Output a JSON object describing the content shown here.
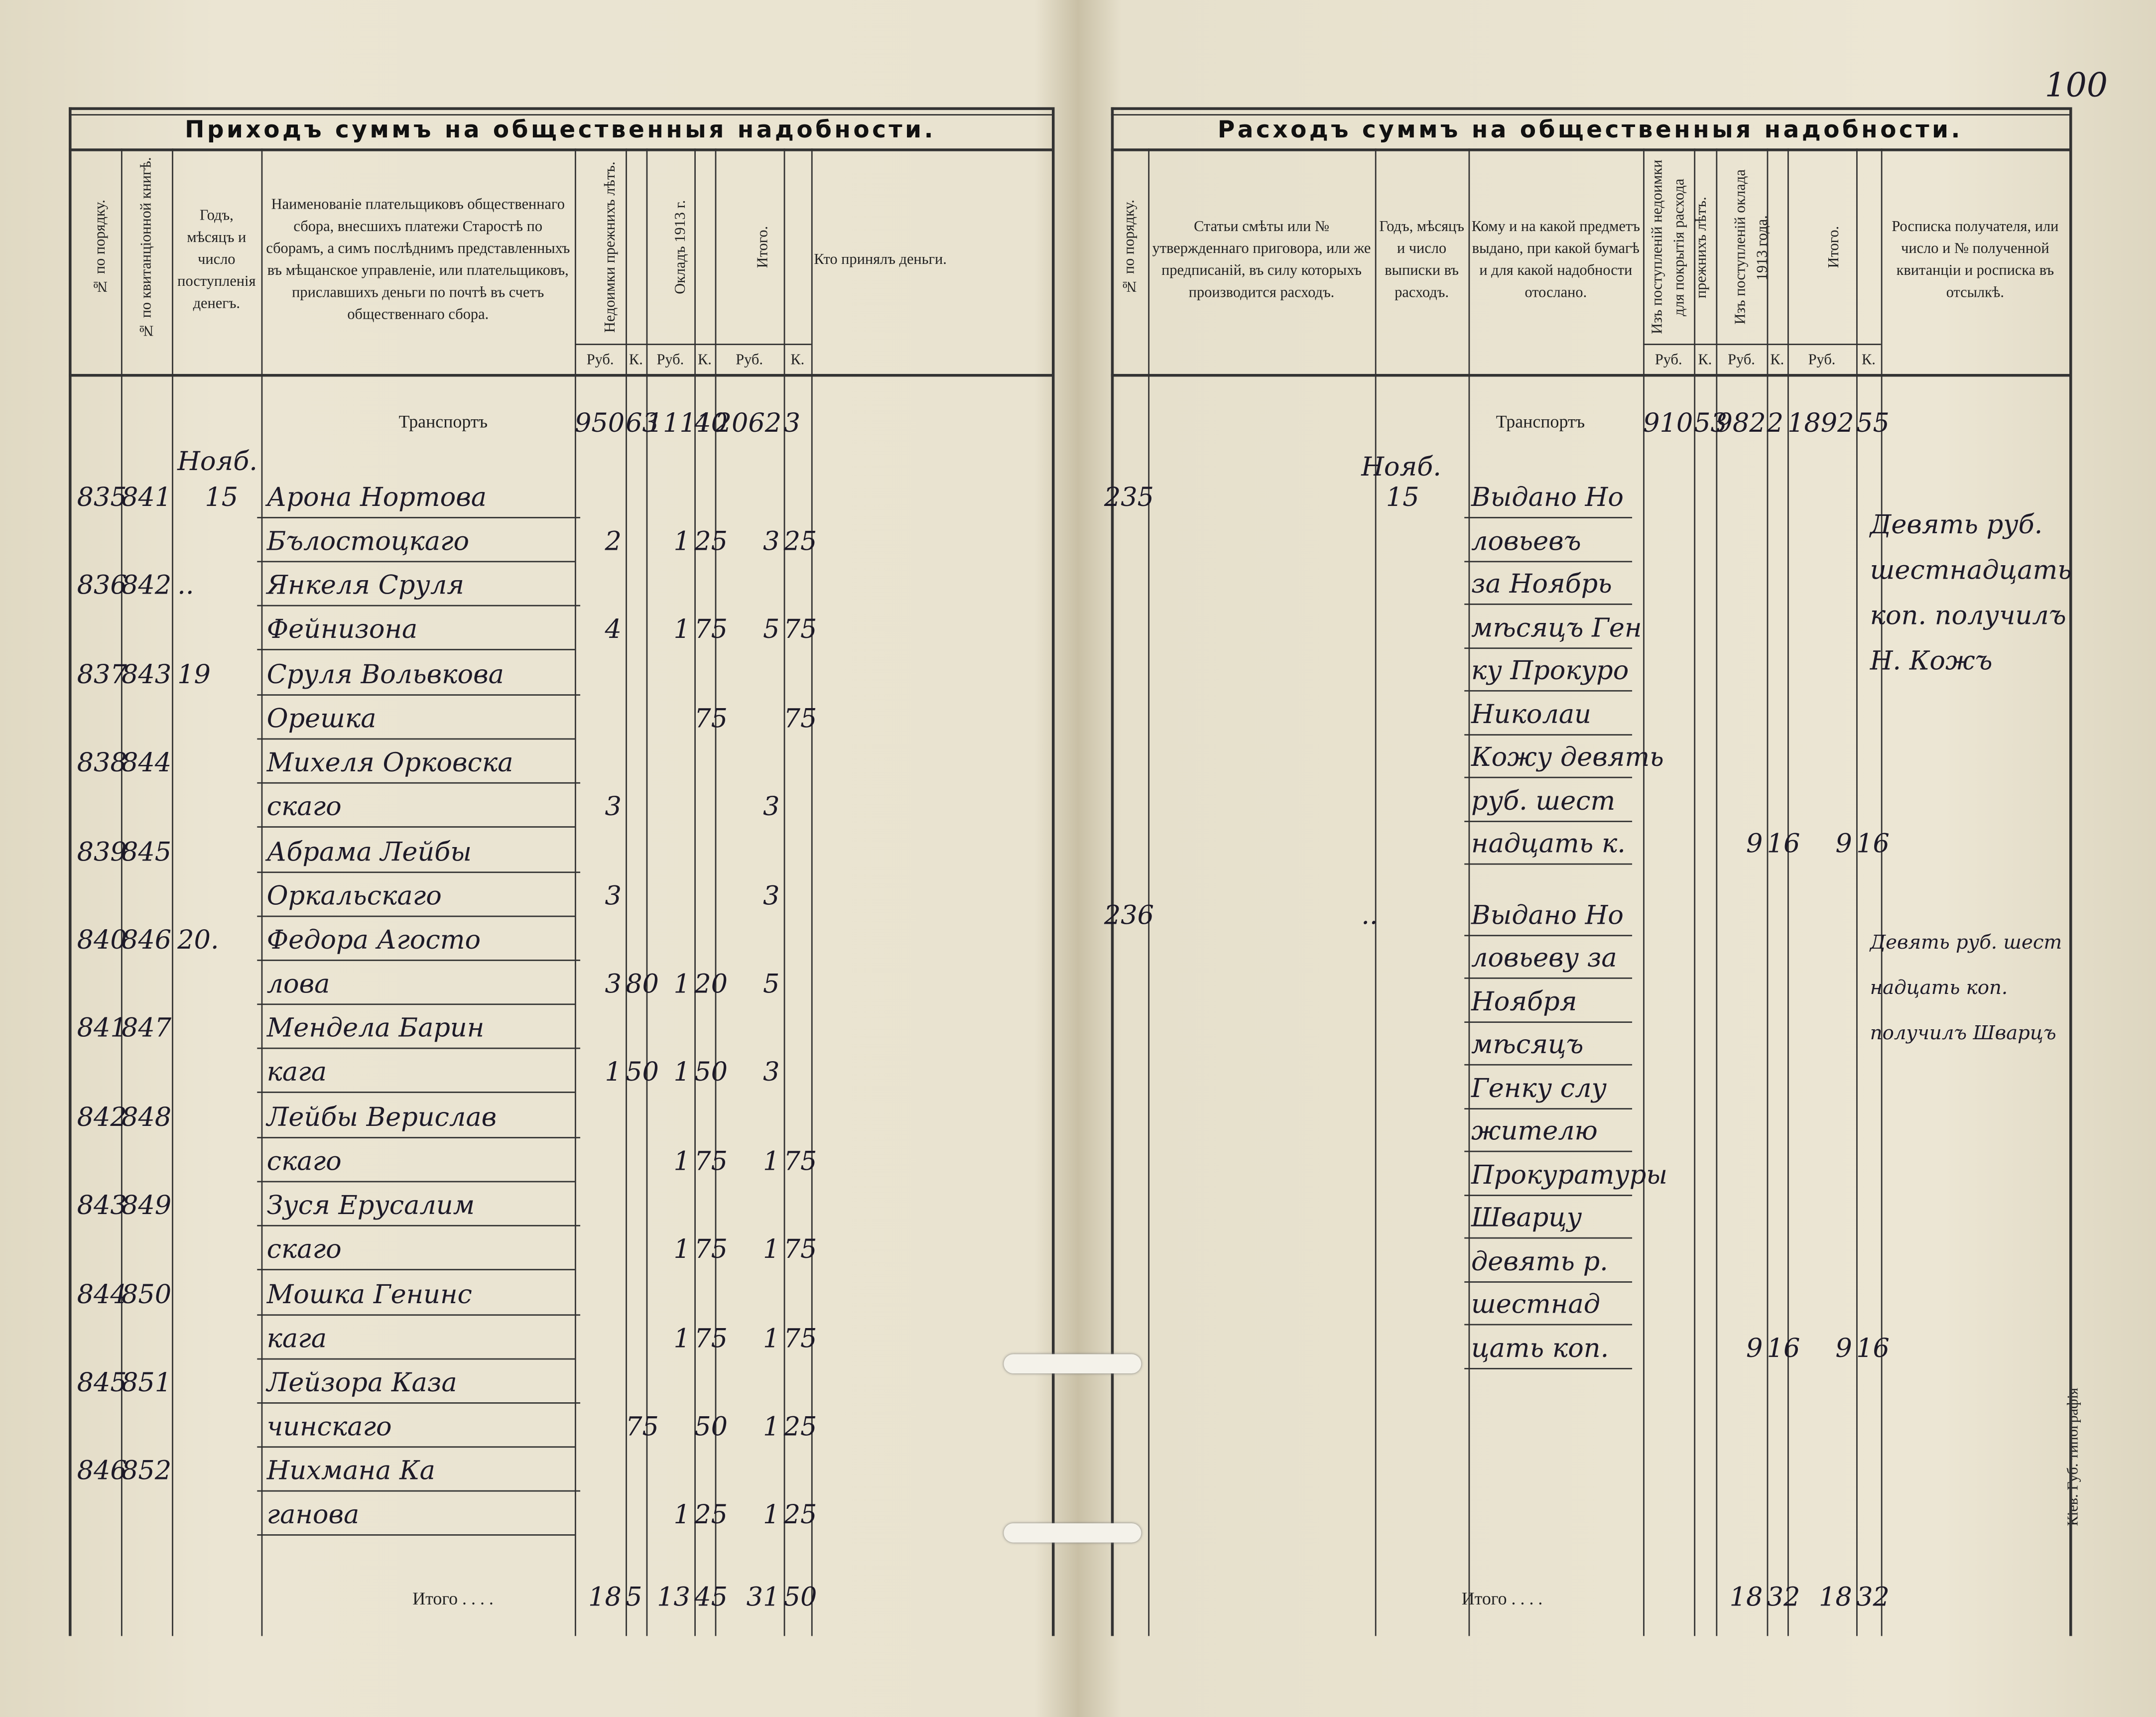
{
  "page_number": "100",
  "printer": "Кіев. Губ. типографія",
  "currency": {
    "rub": "Руб.",
    "kop": "К."
  },
  "left": {
    "title": "Приходъ суммъ на общественныя надобности.",
    "columns": {
      "no": "№ по порядку.",
      "receipt_no": "№ по квитанціонной книгѣ.",
      "date": "Годъ, мѣсяцъ и число поступленія денегъ.",
      "payers": "Наименованіе плательщиковъ общественнаго сбора, внесшихъ платежи Старостѣ по сборамъ, а симъ послѣднимъ представленныхъ въ мѣщанское управленіе, или плательщиковъ, приславшихъ деньги по почтѣ въ счетъ общественнаго сбора.",
      "arrears": "Недоимки прежнихъ лѣтъ.",
      "salary": "Окладъ 1913 г.",
      "total": "Итого.",
      "accepted_by": "Кто принялъ деньги."
    },
    "transport": {
      "label": "Транспортъ",
      "arrears": [
        "950",
        "63"
      ],
      "salary": [
        "1111",
        "40"
      ],
      "total": [
        "2062",
        "3"
      ]
    },
    "rows": [
      {
        "no": "835",
        "receipt": "841",
        "date": [
          "Нояб.",
          "15"
        ],
        "name": [
          "Арона Нортова",
          "Бълостоцкаго"
        ],
        "arrears": [
          "2",
          null
        ],
        "salary": [
          "1",
          "25"
        ],
        "total": [
          "3",
          "25"
        ]
      },
      {
        "no": "836",
        "receipt": "842",
        "date": [
          ".."
        ],
        "name": [
          "Янкеля Сруля",
          "Фейнизона"
        ],
        "arrears": [
          "4",
          null
        ],
        "salary": [
          "1",
          "75"
        ],
        "total": [
          "5",
          "75"
        ]
      },
      {
        "no": "837",
        "receipt": "843",
        "date": [
          "19"
        ],
        "name": [
          "Сруля Вольвкова",
          "Орешка"
        ],
        "arrears": [
          null,
          null
        ],
        "salary": [
          null,
          "75"
        ],
        "total": [
          null,
          "75"
        ]
      },
      {
        "no": "838",
        "receipt": "844",
        "name": [
          "Михеля Орковска",
          "скаго"
        ],
        "arrears": [
          "3",
          null
        ],
        "salary": [
          null,
          null
        ],
        "total": [
          "3",
          null
        ]
      },
      {
        "no": "839",
        "receipt": "845",
        "name": [
          "Абрама Лейбы",
          "Оркальскаго"
        ],
        "arrears": [
          "3",
          null
        ],
        "salary": [
          null,
          null
        ],
        "total": [
          "3",
          null
        ]
      },
      {
        "no": "840",
        "receipt": "846",
        "date": [
          "20."
        ],
        "name": [
          "Федора Агосто",
          "лова"
        ],
        "arrears": [
          "3",
          "80"
        ],
        "salary": [
          "1",
          "20"
        ],
        "total": [
          "5",
          null
        ]
      },
      {
        "no": "841",
        "receipt": "847",
        "name": [
          "Мендела Барин",
          "кага"
        ],
        "arrears": [
          "1",
          "50"
        ],
        "salary": [
          "1",
          "50"
        ],
        "total": [
          "3",
          null
        ]
      },
      {
        "no": "842",
        "receipt": "848",
        "name": [
          "Лейбы Верислав",
          "скаго"
        ],
        "arrears": [
          null,
          null
        ],
        "salary": [
          "1",
          "75"
        ],
        "total": [
          "1",
          "75"
        ]
      },
      {
        "no": "843",
        "receipt": "849",
        "name": [
          "Зуся Ерусалим",
          "скаго"
        ],
        "arrears": [
          null,
          null
        ],
        "salary": [
          "1",
          "75"
        ],
        "total": [
          "1",
          "75"
        ]
      },
      {
        "no": "844",
        "receipt": "850",
        "name": [
          "Мошка Генинс",
          "кага"
        ],
        "arrears": [
          null,
          null
        ],
        "salary": [
          "1",
          "75"
        ],
        "total": [
          "1",
          "75"
        ]
      },
      {
        "no": "845",
        "receipt": "851",
        "name": [
          "Лейзора Каза",
          "чинскаго"
        ],
        "arrears": [
          null,
          "75"
        ],
        "salary": [
          null,
          "50"
        ],
        "total": [
          "1",
          "25"
        ]
      },
      {
        "no": "846",
        "receipt": "852",
        "name": [
          "Нихмана Ка",
          "ганова"
        ],
        "arrears": [
          null,
          null
        ],
        "salary": [
          "1",
          "25"
        ],
        "total": [
          "1",
          "25"
        ]
      }
    ],
    "sum": {
      "label": "Итого . . . .",
      "arrears": [
        "18",
        "5"
      ],
      "salary": [
        "13",
        "45"
      ],
      "total": [
        "31",
        "50"
      ]
    }
  },
  "right": {
    "title": "Расходъ суммъ на общественныя надобности.",
    "columns": {
      "no": "№ по порядку.",
      "articles": "Статьи смѣты или № утвержденнаго приговора, или же предписаній, въ силу которыхъ производится расходъ.",
      "date": "Годъ, мѣсяцъ и число выписки въ расходъ.",
      "recipient": "Кому и на какой предметъ выдано, при какой бумагѣ и для какой надобности отослано.",
      "arrears": "Изъ поступленій недоимки для покрытія расхода прежнихъ лѣтъ.",
      "salary": "Изъ поступленій оклада 1913 года.",
      "total": "Итого.",
      "receipt": "Росписка получателя, или число и № полученной квитанціи и росписка въ отсылкѣ."
    },
    "transport": {
      "label": "Транспортъ",
      "arrears": [
        "910",
        "53"
      ],
      "salary": [
        "982",
        "2"
      ],
      "total": [
        "1892",
        "55"
      ]
    },
    "rows": [
      {
        "no": "235",
        "date": [
          "Нояб.",
          "15"
        ],
        "text": [
          "Выдано Но",
          "ловьевъ",
          "за Ноябрь",
          "мѣсяцъ Ген",
          "ку Прокуро",
          "Николаи",
          "Кожу девять",
          "руб. шест",
          "надцать к."
        ],
        "salary": [
          "9",
          "16"
        ],
        "total": [
          "9",
          "16"
        ],
        "receipt": [
          "Девять руб.",
          "шестнадцать",
          "коп. получилъ",
          "Н. Кожъ"
        ]
      },
      {
        "no": "236",
        "date": [
          ".."
        ],
        "text": [
          "Выдано Но",
          "ловьеву за",
          "Ноября",
          "мѣсяцъ",
          "Генку слу",
          "жителю",
          "Прокуратуры",
          "Шварцу",
          "девять р.",
          "шестнад",
          "цать коп."
        ],
        "salary": [
          "9",
          "16"
        ],
        "total": [
          "9",
          "16"
        ],
        "receipt": [
          "Девять руб. шест",
          "надцать коп.",
          "получилъ Шварцъ"
        ]
      }
    ],
    "sum": {
      "label": "Итого . . . .",
      "salary": [
        "18",
        "32"
      ],
      "total": [
        "18",
        "32"
      ]
    }
  }
}
